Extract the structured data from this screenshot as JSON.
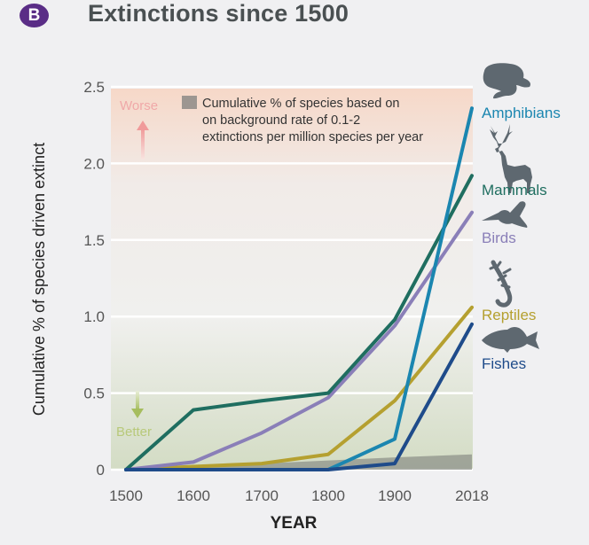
{
  "header": {
    "badge": "B",
    "title": "Extinctions since 1500"
  },
  "chart_data": {
    "type": "line",
    "title": "Extinctions since 1500",
    "xlabel": "YEAR",
    "ylabel": "Cumulative % of species driven extinct",
    "x": [
      1500,
      1600,
      1700,
      1800,
      1900,
      2018
    ],
    "x_tick_labels": [
      "1500",
      "1600",
      "1700",
      "1800",
      "1900",
      "2018"
    ],
    "y_ticks": [
      0,
      0.5,
      1.0,
      1.5,
      2.0,
      2.5
    ],
    "y_tick_labels": [
      "0",
      "0.5",
      "1.0",
      "1.5",
      "2.0",
      "2.5"
    ],
    "ylim": [
      0,
      2.5
    ],
    "grid": "horizontal",
    "series": [
      {
        "name": "Amphibians",
        "color": "#1b86b0",
        "values": [
          0,
          0,
          0,
          0,
          0.2,
          2.36
        ]
      },
      {
        "name": "Mammals",
        "color": "#1f6e60",
        "values": [
          0,
          0.39,
          0.45,
          0.5,
          0.98,
          1.92
        ]
      },
      {
        "name": "Birds",
        "color": "#8a7fb8",
        "values": [
          0,
          0.05,
          0.24,
          0.47,
          0.94,
          1.68
        ]
      },
      {
        "name": "Reptiles",
        "color": "#b5a030",
        "values": [
          0,
          0.02,
          0.04,
          0.1,
          0.45,
          1.06
        ]
      },
      {
        "name": "Fishes",
        "color": "#1e4b8a",
        "values": [
          0,
          0,
          0,
          0,
          0.04,
          0.95
        ]
      }
    ],
    "background_rate": {
      "label": "Cumulative % of species based on on background rate of 0.1-2 extinctions per million species per year",
      "label_lines": [
        "Cumulative % of species based on",
        "on background rate of 0.1-2",
        "extinctions per million species per year"
      ],
      "color": "#8e918a",
      "values": [
        0,
        0.02,
        0.04,
        0.06,
        0.08,
        0.1
      ]
    },
    "annotations": {
      "worse": {
        "text": "Worse",
        "color": "#f0a0a0"
      },
      "better": {
        "text": "Better",
        "color": "#b8c97a"
      }
    },
    "legend_placement": "right (labels at line ends with animal silhouettes)"
  }
}
